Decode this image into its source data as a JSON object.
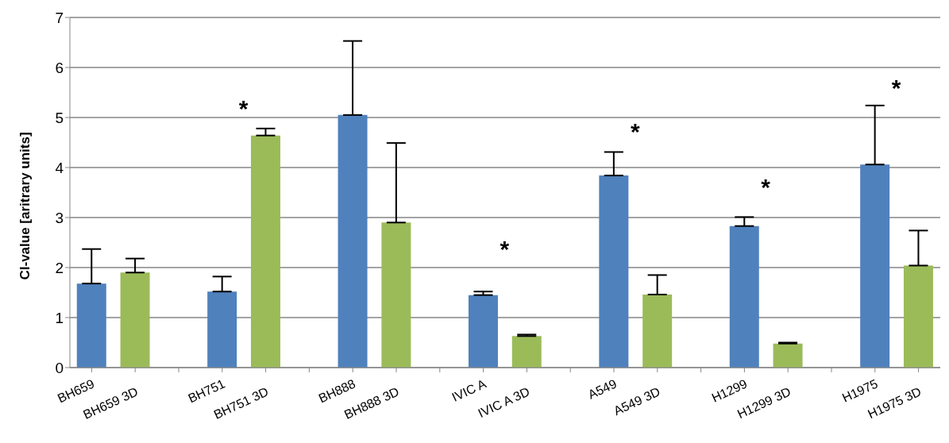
{
  "chart_data": {
    "type": "bar",
    "ylabel": "CI-value [aritrary units]",
    "categories": [
      "BH659",
      "BH659 3D",
      null,
      "BH751",
      "BH751 3D",
      null,
      "BH888",
      "BH888 3D",
      null,
      "IVIC A",
      "IVIC A 3D",
      null,
      "A549",
      "A549 3D",
      null,
      "H1299",
      "H1299 3D",
      null,
      "H1975",
      "H1975 3D"
    ],
    "values": [
      1.68,
      1.9,
      null,
      1.52,
      4.64,
      null,
      5.05,
      2.9,
      null,
      1.45,
      0.63,
      null,
      3.84,
      1.46,
      null,
      2.83,
      0.48,
      null,
      4.06,
      2.04
    ],
    "colors": [
      "#4f81bd",
      "#9bbb59",
      null,
      "#4f81bd",
      "#9bbb59",
      null,
      "#4f81bd",
      "#9bbb59",
      null,
      "#4f81bd",
      "#9bbb59",
      null,
      "#4f81bd",
      "#9bbb59",
      null,
      "#4f81bd",
      "#9bbb59",
      null,
      "#4f81bd",
      "#9bbb59"
    ],
    "errors": [
      [
        1.68,
        2.37
      ],
      [
        1.9,
        2.18
      ],
      null,
      [
        1.52,
        1.82
      ],
      [
        4.64,
        4.78
      ],
      null,
      [
        5.05,
        6.53
      ],
      [
        2.9,
        4.49
      ],
      null,
      [
        1.45,
        1.52
      ],
      [
        0.63,
        0.66
      ],
      null,
      [
        3.84,
        4.31
      ],
      [
        1.46,
        1.85
      ],
      null,
      [
        2.83,
        3.01
      ],
      [
        0.48,
        0.5
      ],
      null,
      [
        4.06,
        5.24
      ],
      [
        2.04,
        2.74
      ]
    ],
    "ylim": [
      0,
      7
    ],
    "yticks": [
      0,
      1,
      2,
      3,
      4,
      5,
      6,
      7
    ],
    "grid": "y",
    "annotations": [
      "*",
      "*",
      "*",
      "*",
      "*"
    ]
  }
}
